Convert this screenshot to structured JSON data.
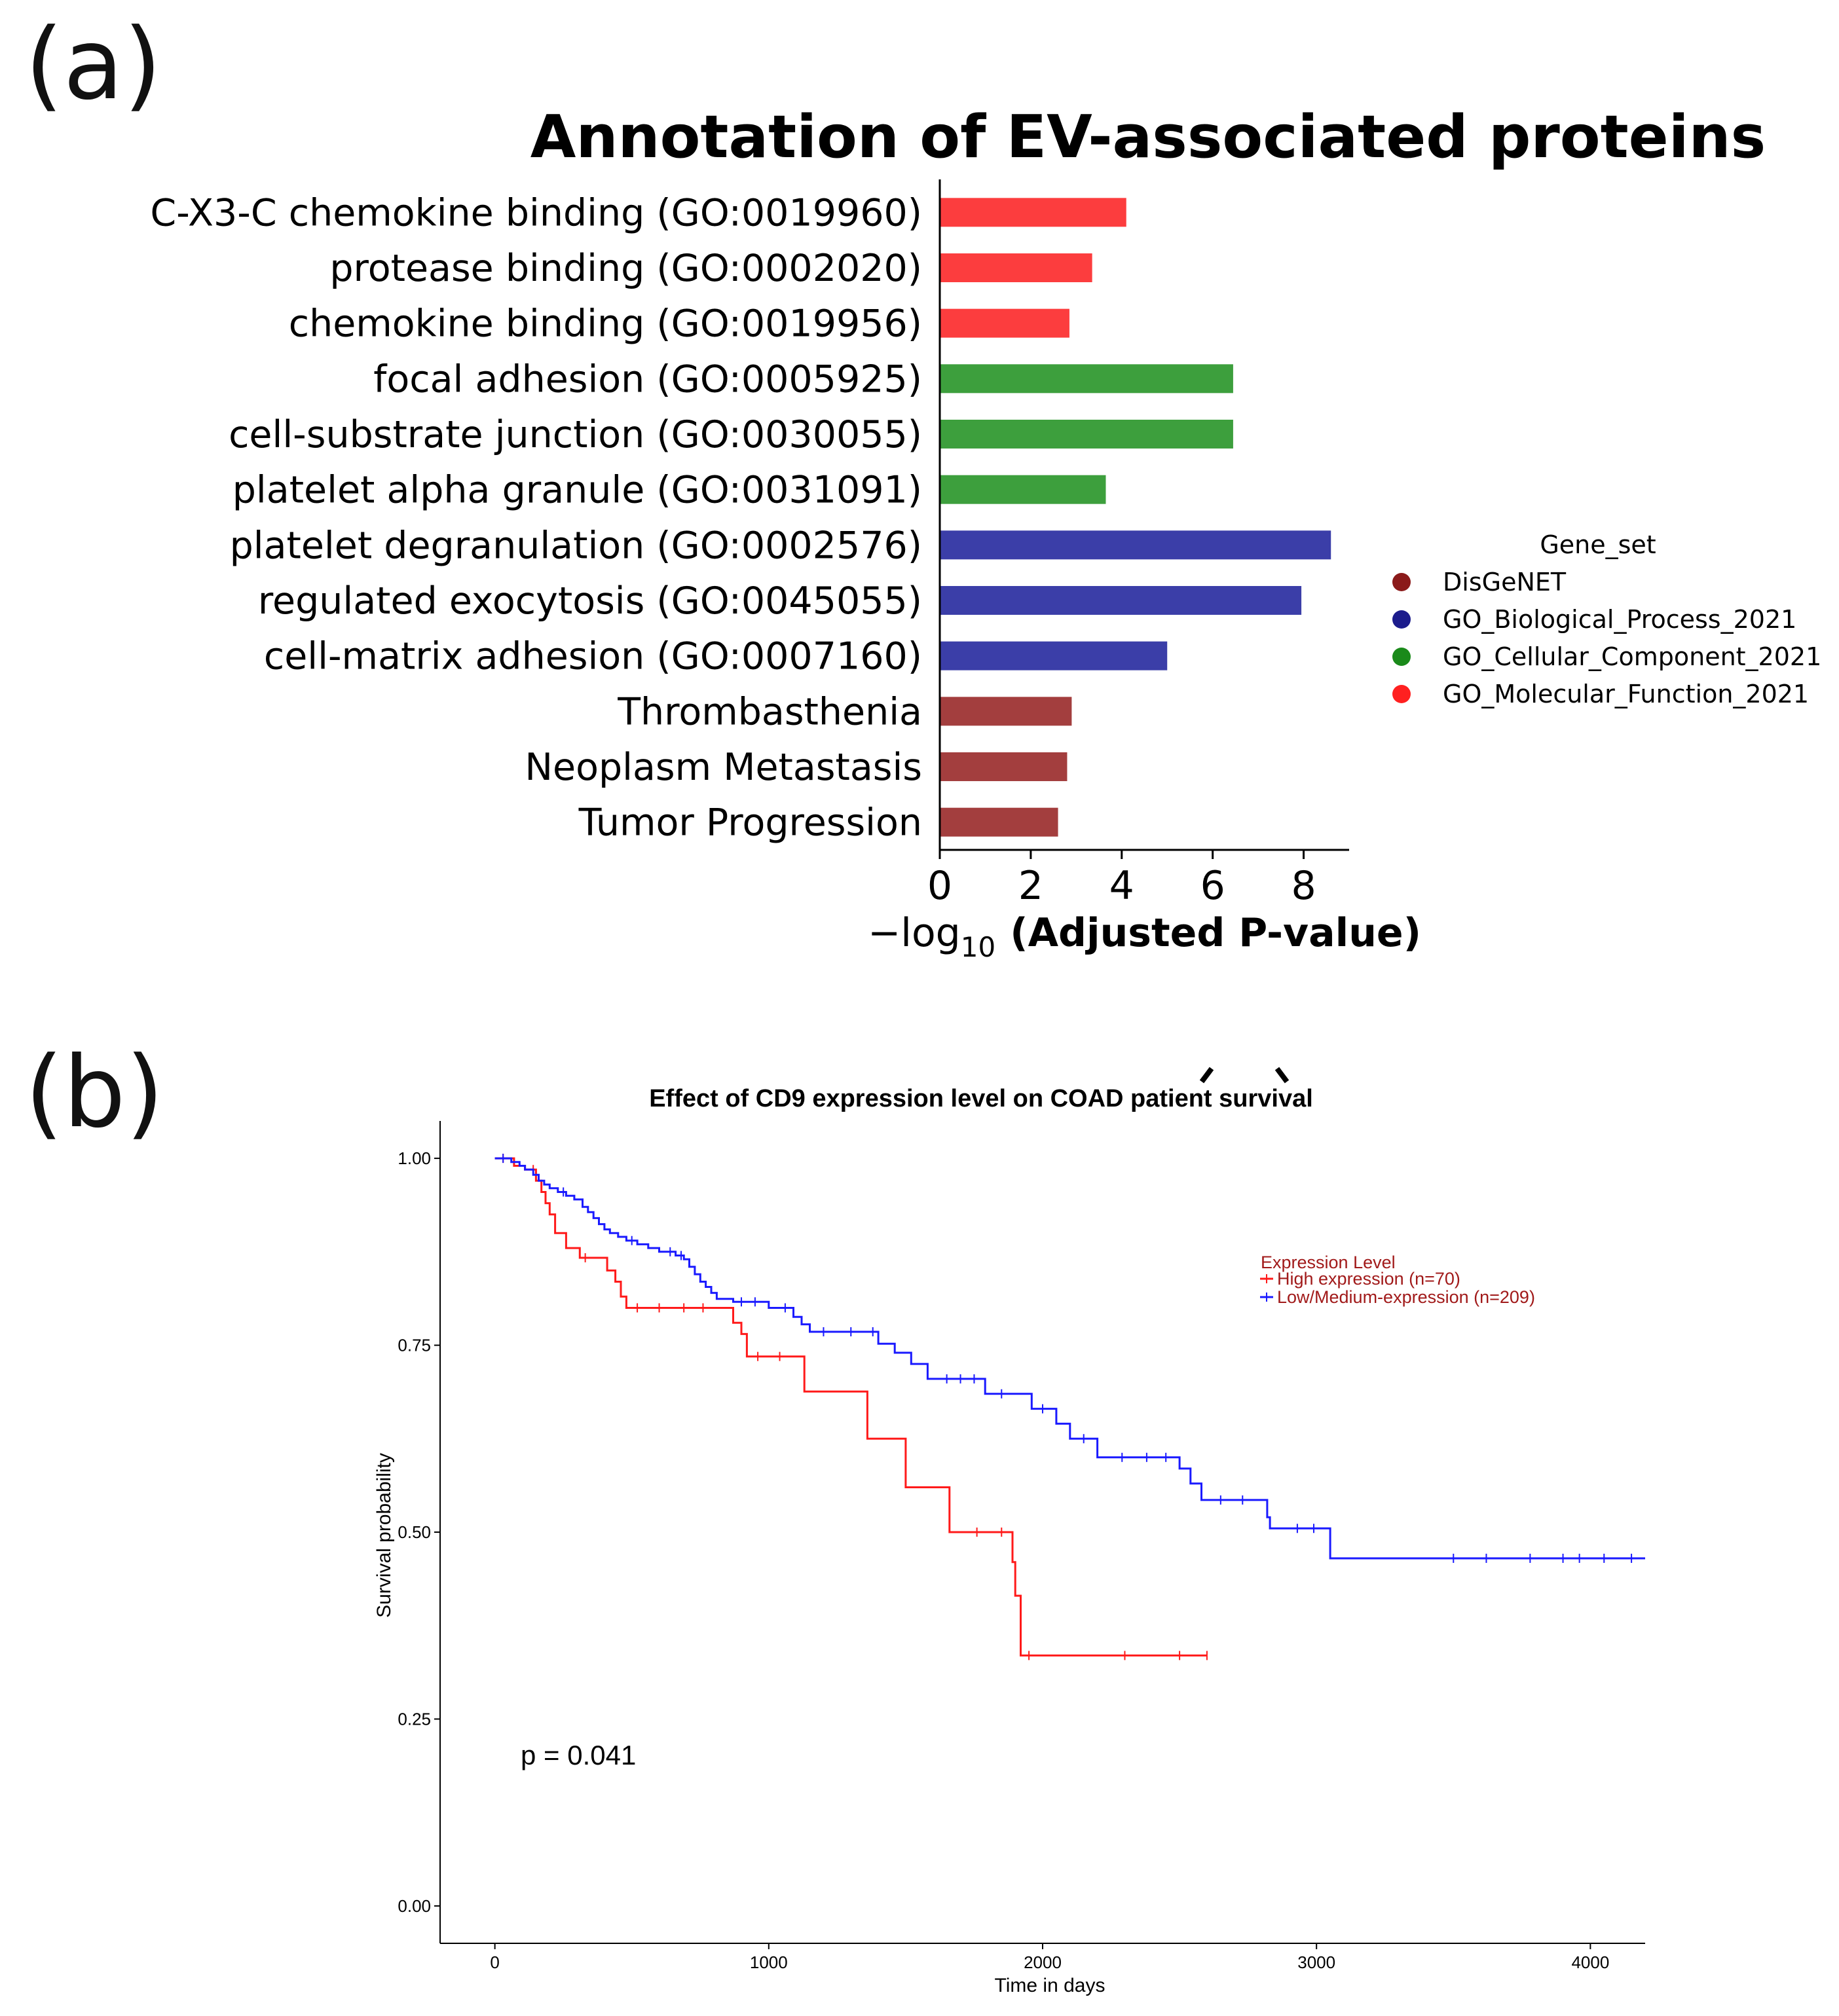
{
  "panels": {
    "a": {
      "label": "(a)"
    },
    "b": {
      "label": "(b)"
    }
  },
  "chart_data": [
    {
      "type": "bar",
      "orientation": "horizontal",
      "title": "Annotation of EV-associated proteins",
      "xlabel_prefix": "−log",
      "xlabel_sub": "10",
      "xlabel_main": "(Adjusted P-value)",
      "xlim": [
        0,
        9.0
      ],
      "xticks": [
        0,
        2,
        4,
        6,
        8
      ],
      "grid": false,
      "legend": {
        "title": "Gene_set",
        "position": "right",
        "entries": [
          {
            "name": "DisGeNET",
            "color": "#8b1a1a"
          },
          {
            "name": "GO_Biological_Process_2021",
            "color": "#1c1c8c"
          },
          {
            "name": "GO_Cellular_Component_2021",
            "color": "#1a8a1a"
          },
          {
            "name": "GO_Molecular_Function_2021",
            "color": "#ff2020"
          }
        ]
      },
      "bars": [
        {
          "label": "C-X3-C chemokine binding (GO:0019960)",
          "value": 4.1,
          "set": "GO_Molecular_Function_2021",
          "color": "#fc3d3e"
        },
        {
          "label": "protease binding (GO:0002020)",
          "value": 3.35,
          "set": "GO_Molecular_Function_2021",
          "color": "#fc3d3e"
        },
        {
          "label": "chemokine binding (GO:0019956)",
          "value": 2.85,
          "set": "GO_Molecular_Function_2021",
          "color": "#fc3d3e"
        },
        {
          "label": "focal adhesion (GO:0005925)",
          "value": 6.45,
          "set": "GO_Cellular_Component_2021",
          "color": "#3d9f3d"
        },
        {
          "label": "cell-substrate junction (GO:0030055)",
          "value": 6.45,
          "set": "GO_Cellular_Component_2021",
          "color": "#3d9f3d"
        },
        {
          "label": "platelet alpha granule (GO:0031091)",
          "value": 3.65,
          "set": "GO_Cellular_Component_2021",
          "color": "#3d9f3d"
        },
        {
          "label": "platelet degranulation (GO:0002576)",
          "value": 8.6,
          "set": "GO_Biological_Process_2021",
          "color": "#3b3ea8"
        },
        {
          "label": "regulated exocytosis (GO:0045055)",
          "value": 7.95,
          "set": "GO_Biological_Process_2021",
          "color": "#3b3ea8"
        },
        {
          "label": "cell-matrix adhesion (GO:0007160)",
          "value": 5.0,
          "set": "GO_Biological_Process_2021",
          "color": "#3b3ea8"
        },
        {
          "label": "Thrombasthenia",
          "value": 2.9,
          "set": "DisGeNET",
          "color": "#a33e3e"
        },
        {
          "label": "Neoplasm Metastasis",
          "value": 2.8,
          "set": "DisGeNET",
          "color": "#a33e3e"
        },
        {
          "label": "Tumor Progression",
          "value": 2.6,
          "set": "DisGeNET",
          "color": "#a33e3e"
        }
      ]
    },
    {
      "type": "line",
      "subtype": "kaplan-meier",
      "title": "Effect of CD9 expression level on COAD patient survival",
      "xlabel": "Time in days",
      "ylabel": "Survival probability",
      "xlim": [
        -200,
        4200
      ],
      "ylim": [
        -0.05,
        1.05
      ],
      "xticks": [
        0,
        1000,
        2000,
        3000,
        4000
      ],
      "yticks": [
        0.0,
        0.25,
        0.5,
        0.75,
        1.0
      ],
      "ytick_labels": [
        "0.00",
        "0.25",
        "0.50",
        "0.75",
        "1.00"
      ],
      "annotation": "p = 0.041",
      "legend": {
        "title": "Expression Level",
        "position": "top-right"
      },
      "series": [
        {
          "name": "High expression (n=70)",
          "color": "#ff1a1a",
          "steps": [
            [
              0,
              1.0
            ],
            [
              70,
              0.99
            ],
            [
              110,
              0.985
            ],
            [
              150,
              0.97
            ],
            [
              170,
              0.955
            ],
            [
              185,
              0.94
            ],
            [
              200,
              0.925
            ],
            [
              220,
              0.9
            ],
            [
              260,
              0.88
            ],
            [
              310,
              0.867
            ],
            [
              410,
              0.85
            ],
            [
              440,
              0.835
            ],
            [
              460,
              0.815
            ],
            [
              480,
              0.8
            ],
            [
              870,
              0.78
            ],
            [
              900,
              0.765
            ],
            [
              920,
              0.735
            ],
            [
              1130,
              0.688
            ],
            [
              1360,
              0.625
            ],
            [
              1500,
              0.56
            ],
            [
              1660,
              0.5
            ],
            [
              1890,
              0.46
            ],
            [
              1900,
              0.415
            ],
            [
              1920,
              0.335
            ],
            [
              2600,
              0.335
            ]
          ],
          "censors": [
            [
              30,
              1.0
            ],
            [
              140,
              0.985
            ],
            [
              330,
              0.867
            ],
            [
              520,
              0.8
            ],
            [
              600,
              0.8
            ],
            [
              690,
              0.8
            ],
            [
              760,
              0.8
            ],
            [
              960,
              0.735
            ],
            [
              1040,
              0.735
            ],
            [
              1760,
              0.5
            ],
            [
              1850,
              0.5
            ],
            [
              1950,
              0.335
            ],
            [
              2300,
              0.335
            ],
            [
              2500,
              0.335
            ],
            [
              2600,
              0.335
            ]
          ]
        },
        {
          "name": "Low/Medium-expression (n=209)",
          "color": "#1a1aff",
          "steps": [
            [
              0,
              1.0
            ],
            [
              60,
              0.995
            ],
            [
              90,
              0.99
            ],
            [
              110,
              0.985
            ],
            [
              140,
              0.978
            ],
            [
              160,
              0.97
            ],
            [
              180,
              0.965
            ],
            [
              200,
              0.96
            ],
            [
              230,
              0.955
            ],
            [
              260,
              0.95
            ],
            [
              290,
              0.945
            ],
            [
              320,
              0.935
            ],
            [
              340,
              0.928
            ],
            [
              360,
              0.92
            ],
            [
              380,
              0.912
            ],
            [
              400,
              0.905
            ],
            [
              420,
              0.9
            ],
            [
              450,
              0.895
            ],
            [
              480,
              0.89
            ],
            [
              520,
              0.885
            ],
            [
              560,
              0.88
            ],
            [
              600,
              0.875
            ],
            [
              660,
              0.87
            ],
            [
              690,
              0.865
            ],
            [
              710,
              0.855
            ],
            [
              730,
              0.845
            ],
            [
              750,
              0.835
            ],
            [
              770,
              0.828
            ],
            [
              790,
              0.82
            ],
            [
              810,
              0.812
            ],
            [
              870,
              0.808
            ],
            [
              1000,
              0.8
            ],
            [
              1090,
              0.788
            ],
            [
              1120,
              0.778
            ],
            [
              1150,
              0.768
            ],
            [
              1400,
              0.752
            ],
            [
              1460,
              0.74
            ],
            [
              1520,
              0.725
            ],
            [
              1580,
              0.705
            ],
            [
              1790,
              0.685
            ],
            [
              1960,
              0.665
            ],
            [
              2050,
              0.645
            ],
            [
              2100,
              0.625
            ],
            [
              2200,
              0.6
            ],
            [
              2500,
              0.585
            ],
            [
              2540,
              0.565
            ],
            [
              2580,
              0.543
            ],
            [
              2820,
              0.52
            ],
            [
              2830,
              0.505
            ],
            [
              3050,
              0.465
            ],
            [
              4200,
              0.465
            ]
          ],
          "censors": [
            [
              30,
              1.0
            ],
            [
              250,
              0.955
            ],
            [
              500,
              0.89
            ],
            [
              640,
              0.875
            ],
            [
              680,
              0.87
            ],
            [
              900,
              0.808
            ],
            [
              950,
              0.808
            ],
            [
              1060,
              0.8
            ],
            [
              1200,
              0.768
            ],
            [
              1300,
              0.768
            ],
            [
              1380,
              0.768
            ],
            [
              1650,
              0.705
            ],
            [
              1700,
              0.705
            ],
            [
              1750,
              0.705
            ],
            [
              1850,
              0.685
            ],
            [
              2000,
              0.665
            ],
            [
              2150,
              0.625
            ],
            [
              2290,
              0.6
            ],
            [
              2380,
              0.6
            ],
            [
              2450,
              0.6
            ],
            [
              2650,
              0.543
            ],
            [
              2730,
              0.543
            ],
            [
              2930,
              0.505
            ],
            [
              2990,
              0.505
            ],
            [
              3500,
              0.465
            ],
            [
              3620,
              0.465
            ],
            [
              3780,
              0.465
            ],
            [
              3900,
              0.465
            ],
            [
              3960,
              0.465
            ],
            [
              4050,
              0.465
            ],
            [
              4150,
              0.465
            ]
          ]
        }
      ]
    }
  ]
}
